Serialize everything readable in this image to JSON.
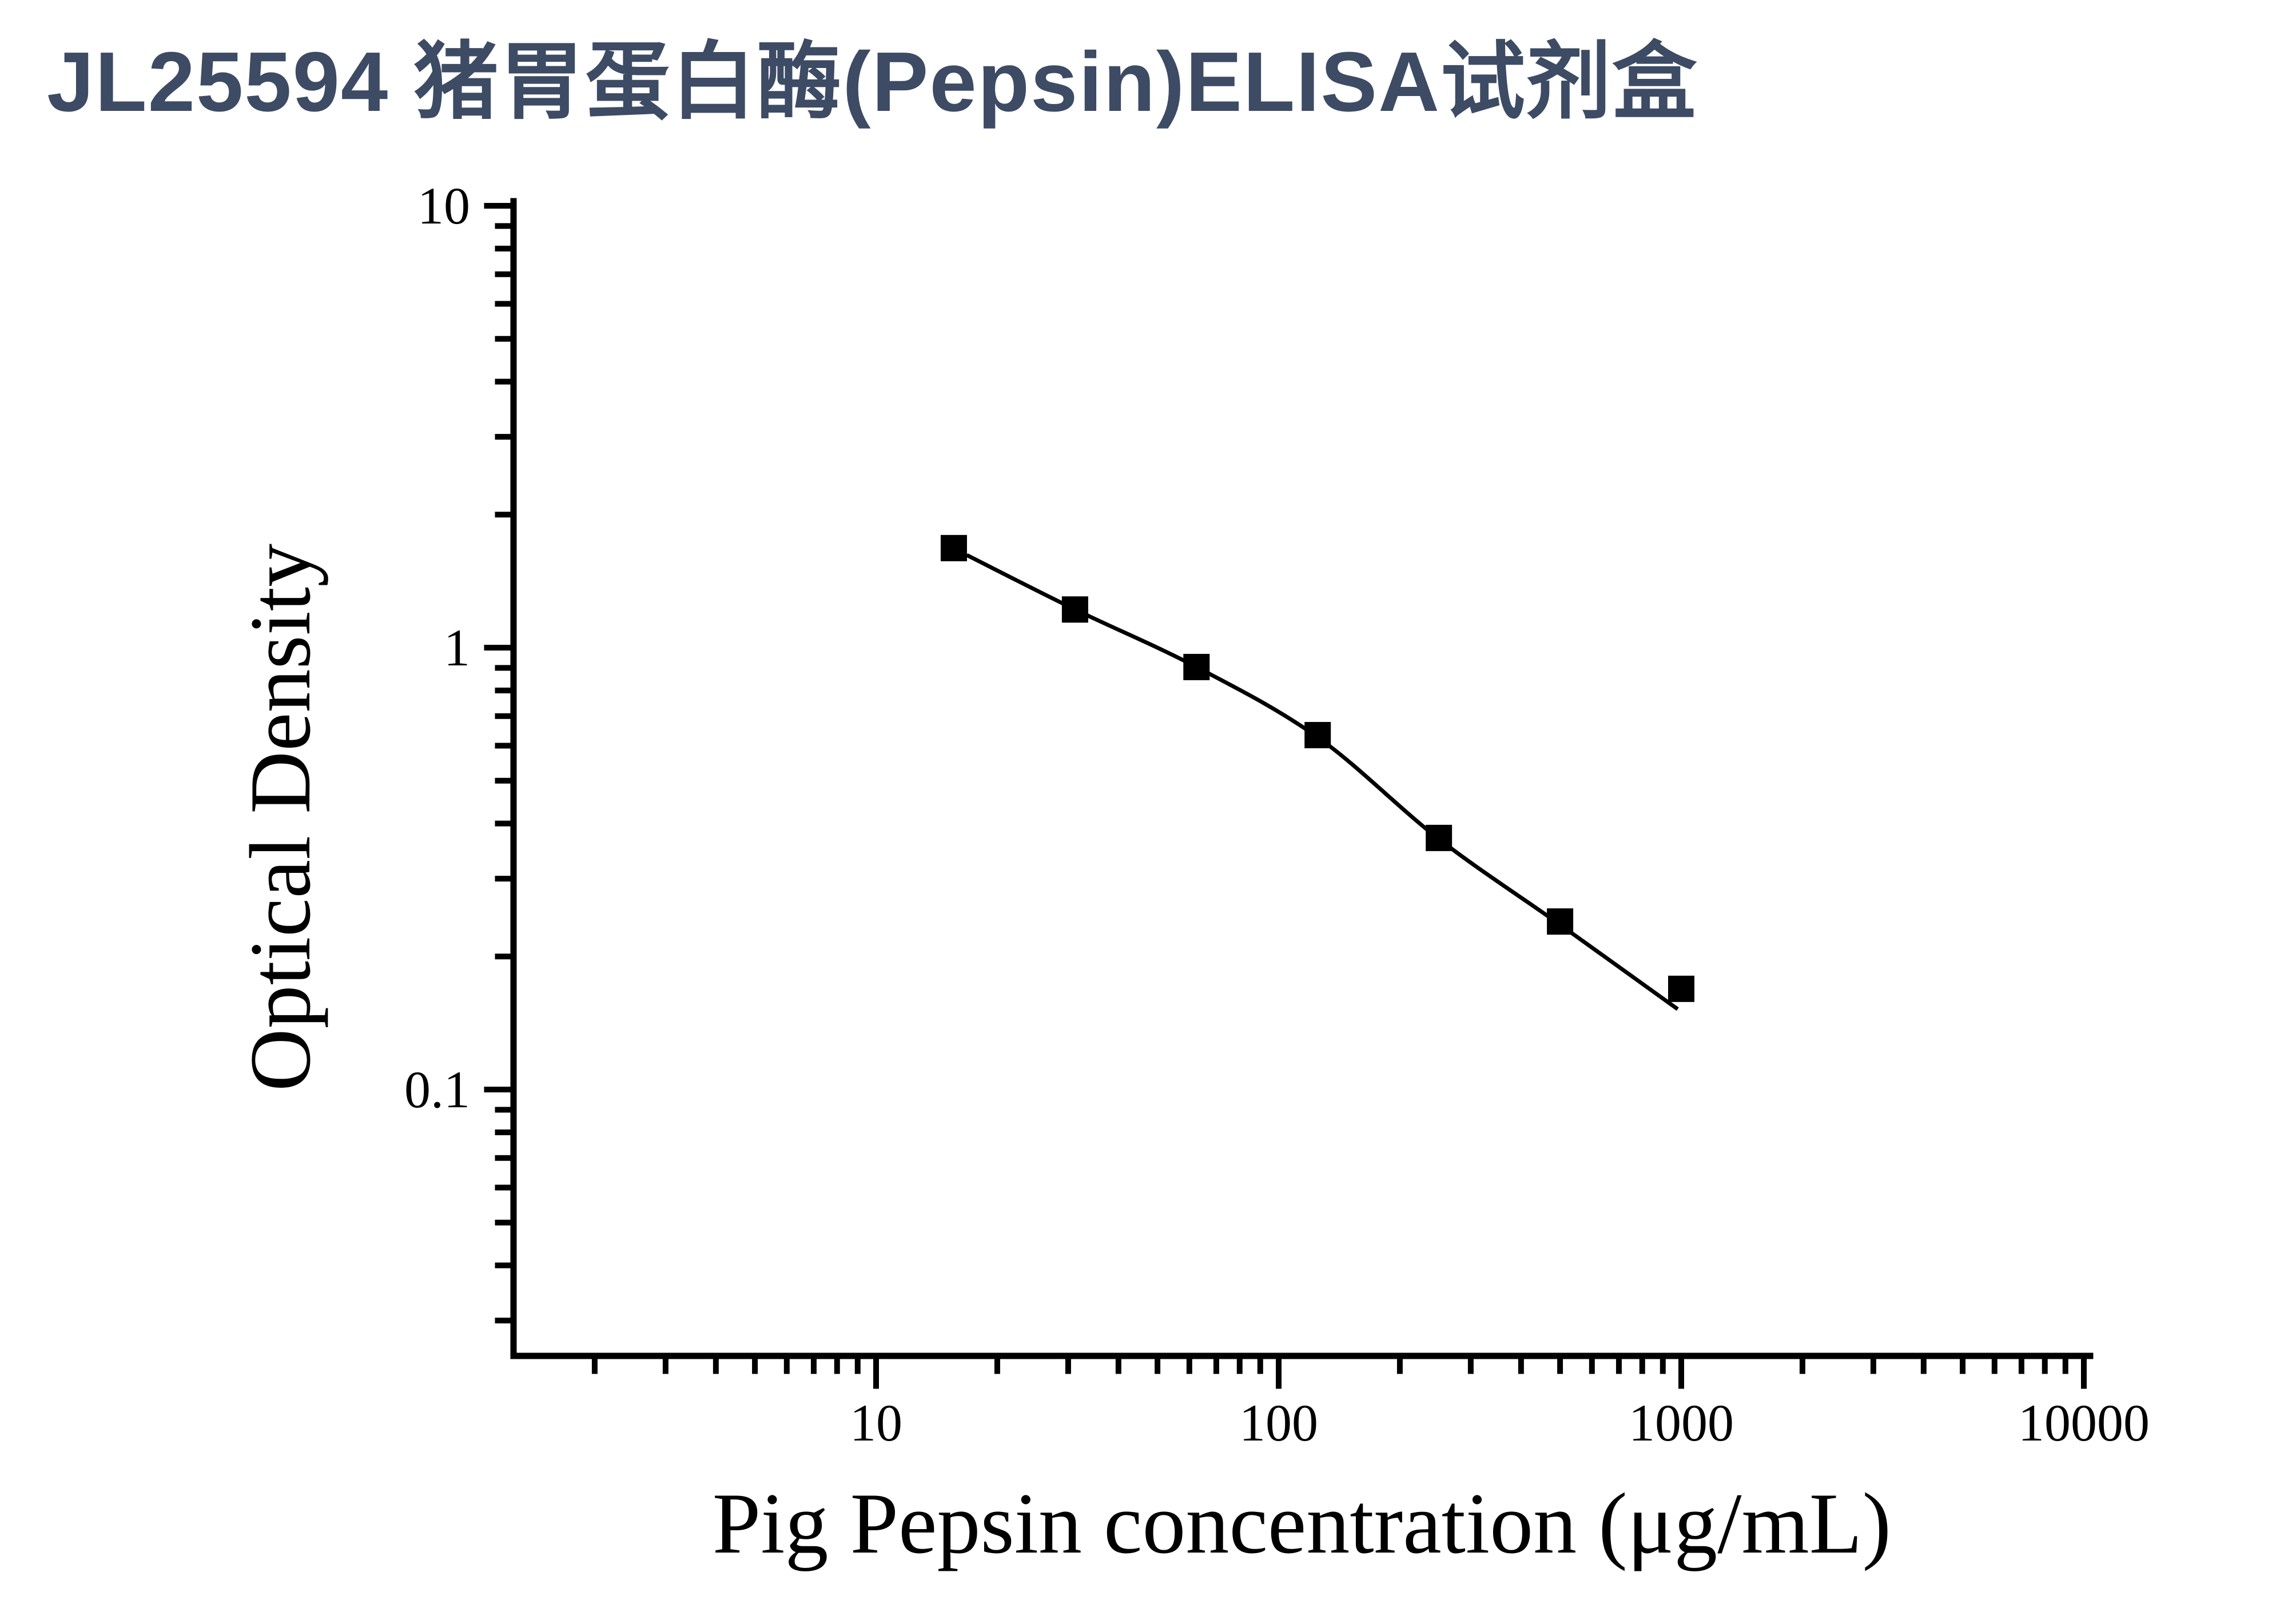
{
  "page": {
    "title": "JL25594 猪胃蛋白酶(Pepsin)ELISA试剂盒",
    "title_color": "#3d4b64",
    "background_color": "#ffffff"
  },
  "chart_data": {
    "type": "scatter",
    "title": "",
    "xlabel": "Pig Pepsin concentration (μg/mL)",
    "ylabel": "Optical Density",
    "x_scale": "log",
    "y_scale": "log",
    "xlim": [
      1.26,
      10400
    ],
    "ylim": [
      0.025,
      10.2
    ],
    "grid": false,
    "legend": false,
    "marker": "filled-square",
    "marker_color": "#000000",
    "line_color": "#000000",
    "axis_color": "#000000",
    "x_major_ticks": [
      10,
      100,
      1000,
      10000
    ],
    "x_major_tick_labels": [
      "10",
      "100",
      "1000",
      "10000"
    ],
    "x_minor_ticks": [
      2,
      3,
      4,
      5,
      6,
      7,
      8,
      9,
      20,
      30,
      40,
      50,
      60,
      70,
      80,
      90,
      200,
      300,
      400,
      500,
      600,
      700,
      800,
      900,
      2000,
      3000,
      4000,
      5000,
      6000,
      7000,
      8000,
      9000
    ],
    "y_major_ticks": [
      10,
      1,
      0.1
    ],
    "y_major_tick_labels": [
      "10",
      "1",
      "0.1"
    ],
    "y_minor_ticks": [
      9,
      8,
      7,
      6,
      5,
      4,
      3,
      2,
      0.9,
      0.8,
      0.7,
      0.6,
      0.5,
      0.4,
      0.3,
      0.2,
      0.09,
      0.08,
      0.07,
      0.06,
      0.05,
      0.04,
      0.03
    ],
    "series": [
      {
        "name": "standard curve points",
        "x": [
          15.6,
          31.2,
          62.5,
          125,
          250,
          500,
          1000
        ],
        "y": [
          1.68,
          1.22,
          0.904,
          0.634,
          0.371,
          0.24,
          0.169
        ]
      }
    ],
    "fit_curve": {
      "name": "fitted line",
      "x": [
        16.8,
        31.2,
        62.5,
        125,
        250,
        500,
        980
      ],
      "y": [
        1.62,
        1.22,
        0.904,
        0.627,
        0.369,
        0.236,
        0.152
      ]
    }
  }
}
